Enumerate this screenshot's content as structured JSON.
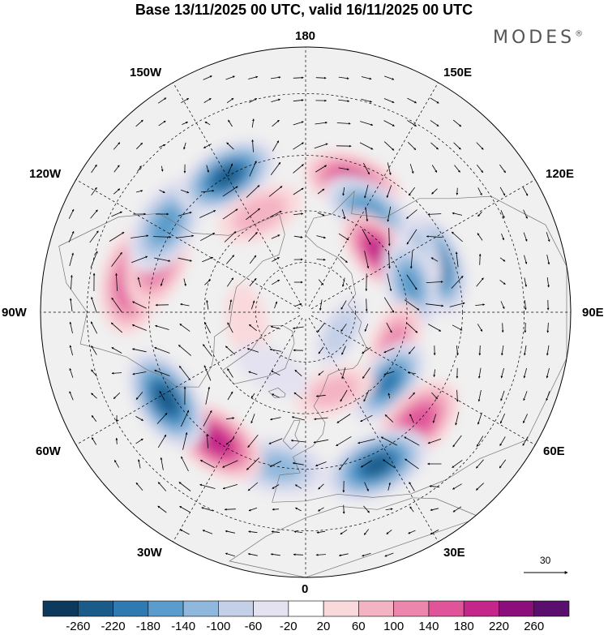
{
  "title": "Base 13/11/2025 00 UTC, valid 16/11/2025 00 UTC",
  "brand": "MODES",
  "brand_mark": "®",
  "longitude_labels": {
    "top": "180",
    "bottom": "0",
    "left": "90W",
    "right": "90E",
    "upper_left_1": "150W",
    "upper_left_2": "120W",
    "upper_right_1": "150E",
    "upper_right_2": "120E",
    "lower_left_1": "60W",
    "lower_left_2": "30W",
    "lower_right_1": "60E",
    "lower_right_2": "30E"
  },
  "vector_scale": {
    "label": "30"
  },
  "colorbar": {
    "ticks": [
      "-260",
      "-220",
      "-180",
      "-140",
      "-100",
      "-60",
      "-20",
      "20",
      "60",
      "100",
      "140",
      "180",
      "220",
      "260"
    ],
    "colors": [
      "#0d3a5c",
      "#1a5b8a",
      "#2f7ab0",
      "#5a9ccb",
      "#8fb8dc",
      "#c3d0e8",
      "#e4e2f0",
      "#ffffff",
      "#fad9dc",
      "#f4b3c3",
      "#ec86ad",
      "#e0559a",
      "#c4268a",
      "#8c0e7a",
      "#5a0e6e"
    ]
  },
  "anomalies": [
    {
      "lon": 110,
      "lat": 50,
      "value": -230
    },
    {
      "lon": 122,
      "lat": 55,
      "value": -170
    },
    {
      "lon": 160,
      "lat": 50,
      "value": 190
    },
    {
      "lon": 148,
      "lat": 55,
      "value": -170
    },
    {
      "lon": 130,
      "lat": 62,
      "value": 200
    },
    {
      "lon": 105,
      "lat": 58,
      "value": -150
    },
    {
      "lon": 70,
      "lat": 62,
      "value": 110
    },
    {
      "lon": 50,
      "lat": 58,
      "value": -190
    },
    {
      "lon": 45,
      "lat": 45,
      "value": 170
    },
    {
      "lon": 25,
      "lat": 42,
      "value": -230
    },
    {
      "lon": -10,
      "lat": 45,
      "value": -110
    },
    {
      "lon": -35,
      "lat": 45,
      "value": 210
    },
    {
      "lon": -58,
      "lat": 43,
      "value": -240
    },
    {
      "lon": -100,
      "lat": 40,
      "value": 170
    },
    {
      "lon": -110,
      "lat": 45,
      "value": 150
    },
    {
      "lon": -122,
      "lat": 43,
      "value": -150
    },
    {
      "lon": -150,
      "lat": 45,
      "value": -230
    },
    {
      "lon": -155,
      "lat": 58,
      "value": 80
    },
    {
      "lon": 20,
      "lat": 65,
      "value": 70
    },
    {
      "lon": 60,
      "lat": 78,
      "value": -80
    },
    {
      "lon": -80,
      "lat": 72,
      "value": 60
    },
    {
      "lon": -30,
      "lat": 70,
      "value": -60
    }
  ]
}
